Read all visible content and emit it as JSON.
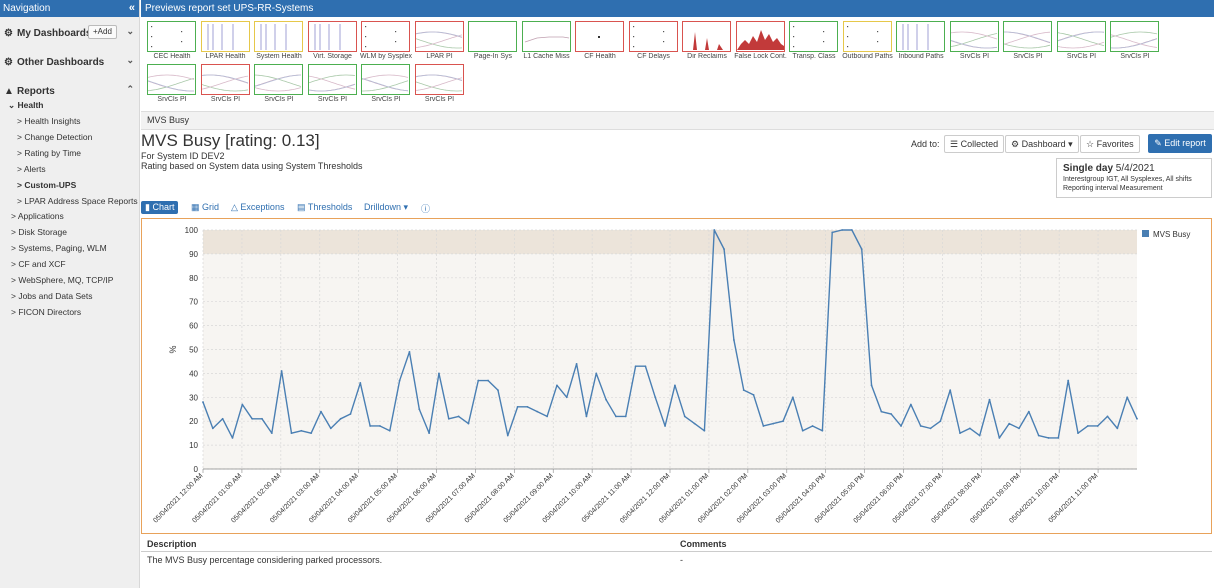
{
  "sidebar": {
    "header": "Navigation",
    "collapse_glyph": "«",
    "my_dashboards": "My Dashboards",
    "add_label": "+Add",
    "other_dashboards": "Other Dashboards",
    "reports": "Reports",
    "health": "Health",
    "items": [
      "Health Insights",
      "Change Detection",
      "Rating by Time",
      "Alerts",
      "Custom-UPS",
      "LPAR Address Space Reports",
      "Applications",
      "Disk Storage",
      "Systems, Paging, WLM",
      "CF and XCF",
      "WebSphere, MQ, TCP/IP",
      "Jobs and Data Sets",
      "FICON Directors"
    ]
  },
  "preview": {
    "header": "Previews report set UPS-RR-Systems",
    "thumbs": [
      {
        "label": "CEC Health",
        "color": "#4caf50",
        "kind": "dots"
      },
      {
        "label": "LPAR Health",
        "color": "#e6c84a",
        "kind": "bars"
      },
      {
        "label": "System Health",
        "color": "#e6c84a",
        "kind": "bars"
      },
      {
        "label": "Virt. Storage",
        "color": "#d9534f",
        "kind": "bars"
      },
      {
        "label": "WLM by Sysplex",
        "color": "#d9534f",
        "kind": "dots"
      },
      {
        "label": "LPAR PI",
        "color": "#d9534f",
        "kind": "noise"
      },
      {
        "label": "Page-In Sys",
        "color": "#4caf50",
        "kind": "empty"
      },
      {
        "label": "L1 Cache Miss",
        "color": "#4caf50",
        "kind": "flat"
      },
      {
        "label": "CF Health",
        "color": "#d9534f",
        "kind": "dot"
      },
      {
        "label": "CF Delays",
        "color": "#d9534f",
        "kind": "dots"
      },
      {
        "label": "Dir Reclaims",
        "color": "#d9534f",
        "kind": "spikes"
      },
      {
        "label": "False Lock Cont.",
        "color": "#d9534f",
        "kind": "area"
      },
      {
        "label": "Transp. Class",
        "color": "#4caf50",
        "kind": "dots"
      },
      {
        "label": "Outbound Paths",
        "color": "#e6c84a",
        "kind": "dots"
      },
      {
        "label": "Inbound Paths",
        "color": "#4caf50",
        "kind": "bars"
      },
      {
        "label": "SrvCls PI",
        "color": "#4caf50",
        "kind": "noise"
      },
      {
        "label": "SrvCls PI",
        "color": "#4caf50",
        "kind": "noise"
      },
      {
        "label": "SrvCls PI",
        "color": "#4caf50",
        "kind": "noise"
      },
      {
        "label": "SrvCls PI",
        "color": "#4caf50",
        "kind": "noise"
      },
      {
        "label": "SrvCls PI",
        "color": "#4caf50",
        "kind": "noise"
      },
      {
        "label": "SrvCls PI",
        "color": "#d9534f",
        "kind": "noise"
      },
      {
        "label": "SrvCls PI",
        "color": "#4caf50",
        "kind": "noise"
      },
      {
        "label": "SrvCls PI",
        "color": "#4caf50",
        "kind": "noise"
      },
      {
        "label": "SrvCls PI",
        "color": "#4caf50",
        "kind": "noise"
      },
      {
        "label": "SrvCls PI",
        "color": "#d9534f",
        "kind": "noise"
      }
    ]
  },
  "breadcrumb": "MVS Busy",
  "report": {
    "title": "MVS Busy [rating: 0.13]",
    "subtitle1": "For System ID DEV2",
    "subtitle2": "Rating based on System data using System Thresholds"
  },
  "toolbar": {
    "add_to": "Add to:",
    "collected": "Collected",
    "dashboard": "Dashboard",
    "favorites": "Favorites",
    "edit_report": "Edit report"
  },
  "info": {
    "period": "Single day",
    "date": "5/4/2021",
    "line2": "Interestgroup IGT, All Sysplexes, All shifts",
    "line3": "Reporting interval Measurement"
  },
  "tabs": {
    "chart": "Chart",
    "grid": "Grid",
    "exceptions": "Exceptions",
    "thresholds": "Thresholds",
    "drilldown": "Drilldown"
  },
  "colors": {
    "accent": "#2f6fb0",
    "line": "#4a7fb3",
    "frame": "#e8a25a",
    "threshold_band": "#ece4da",
    "plot_bg": "#f7f5f2"
  },
  "chart_data": {
    "type": "line",
    "ylabel": "%",
    "ylim": [
      0,
      100
    ],
    "yticks": [
      0,
      10,
      20,
      30,
      40,
      50,
      60,
      70,
      80,
      90,
      100
    ],
    "threshold_band": [
      90,
      100
    ],
    "legend": "top-right",
    "grid": true,
    "series": [
      {
        "name": "MVS Busy",
        "values": [
          28,
          17,
          21,
          13,
          27,
          21,
          21,
          15,
          41,
          15,
          16,
          15,
          24,
          17,
          21,
          23,
          36,
          18,
          18,
          16,
          37,
          49,
          25,
          15,
          40,
          21,
          22,
          19,
          37,
          37,
          33,
          14,
          26,
          26,
          24,
          22,
          35,
          30,
          44,
          22,
          40,
          29,
          22,
          22,
          43,
          43,
          30,
          18,
          35,
          22,
          19,
          16,
          100,
          92,
          54,
          33,
          31,
          18,
          19,
          20,
          30,
          16,
          18,
          16,
          99,
          100,
          100,
          92,
          35,
          24,
          23,
          18,
          27,
          18,
          17,
          20,
          33,
          15,
          17,
          14,
          29,
          13,
          19,
          17,
          24,
          14,
          13,
          13,
          37,
          15,
          18,
          18,
          22,
          17,
          30,
          21
        ]
      }
    ],
    "xlabels": [
      "05/04/2021 12:00 AM",
      "05/04/2021 01:00 AM",
      "05/04/2021 02:00 AM",
      "05/04/2021 03:00 AM",
      "05/04/2021 04:00 AM",
      "05/04/2021 05:00 AM",
      "05/04/2021 06:00 AM",
      "05/04/2021 07:00 AM",
      "05/04/2021 08:00 AM",
      "05/04/2021 09:00 AM",
      "05/04/2021 10:00 AM",
      "05/04/2021 11:00 AM",
      "05/04/2021 12:00 PM",
      "05/04/2021 01:00 PM",
      "05/04/2021 02:00 PM",
      "05/04/2021 03:00 PM",
      "05/04/2021 04:00 PM",
      "05/04/2021 05:00 PM",
      "05/04/2021 06:00 PM",
      "05/04/2021 07:00 PM",
      "05/04/2021 08:00 PM",
      "05/04/2021 09:00 PM",
      "05/04/2021 10:00 PM",
      "05/04/2021 11:00 PM"
    ]
  },
  "description": {
    "header_desc": "Description",
    "header_comments": "Comments",
    "text": "The MVS Busy percentage considering parked processors.",
    "comment": "-"
  }
}
